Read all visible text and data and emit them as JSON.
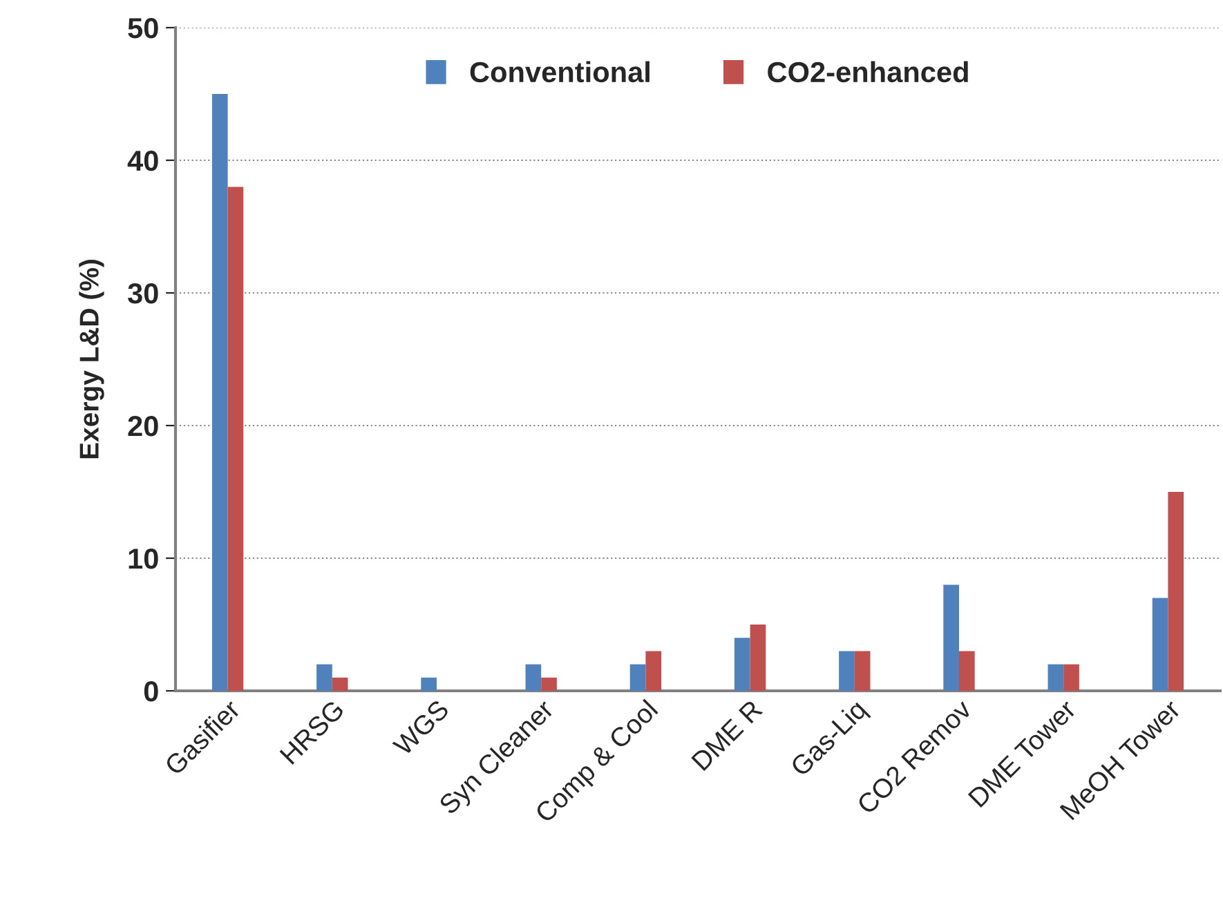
{
  "chart_data": {
    "type": "bar",
    "ylabel": "Exergy L&D (%)",
    "categories": [
      "Gasifier",
      "HRSG",
      "WGS",
      "Syn Cleaner",
      "Comp & Cool",
      "DME R",
      "Gas-Liq",
      "CO2 Remov",
      "DME Tower",
      "MeOH Tower"
    ],
    "series": [
      {
        "name": "Conventional",
        "color": "#4f81bd",
        "values": [
          45,
          2,
          1,
          2,
          2,
          4,
          3,
          8,
          2,
          7
        ]
      },
      {
        "name": "CO2-enhanced",
        "color": "#c0504d",
        "values": [
          38,
          1,
          null,
          1,
          3,
          5,
          3,
          3,
          2,
          15
        ]
      }
    ],
    "ylim": [
      0,
      50
    ],
    "yticks": [
      0,
      10,
      20,
      30,
      40,
      50
    ],
    "grid": "y",
    "legend": "top"
  }
}
